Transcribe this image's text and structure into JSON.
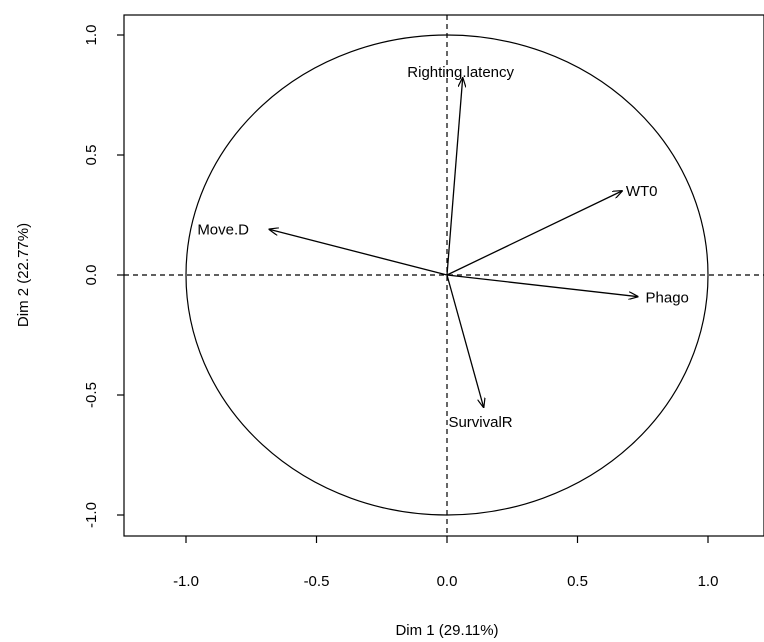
{
  "chart_data": {
    "type": "scatter",
    "subtype": "pca-variables-factor-map",
    "xlabel": "Dim 1 (29.11%)",
    "ylabel": "Dim 2 (22.77%)",
    "xlim": [
      -1.22,
      1.22
    ],
    "ylim": [
      -1.1,
      1.1
    ],
    "xticks": [
      -1.0,
      -0.5,
      0.0,
      0.5,
      1.0
    ],
    "yticks": [
      -1.0,
      -0.5,
      0.0,
      0.5,
      1.0
    ],
    "x_tick_labels": [
      "-1.0",
      "-0.5",
      "0.0",
      "0.5",
      "1.0"
    ],
    "y_tick_labels": [
      "-1.0",
      "-0.5",
      "0.0",
      "0.5",
      "1.0"
    ],
    "unit_circle": true,
    "reference_lines": "dashed lines at x = 0 and y = 0",
    "variables": [
      {
        "name": "Righting.latency",
        "x": 0.06,
        "y": 0.82
      },
      {
        "name": "WT0",
        "x": 0.67,
        "y": 0.35
      },
      {
        "name": "Move.D",
        "x": -0.68,
        "y": 0.19
      },
      {
        "name": "Phago",
        "x": 0.73,
        "y": -0.09
      },
      {
        "name": "SurvivalR",
        "x": 0.14,
        "y": -0.55
      }
    ]
  }
}
